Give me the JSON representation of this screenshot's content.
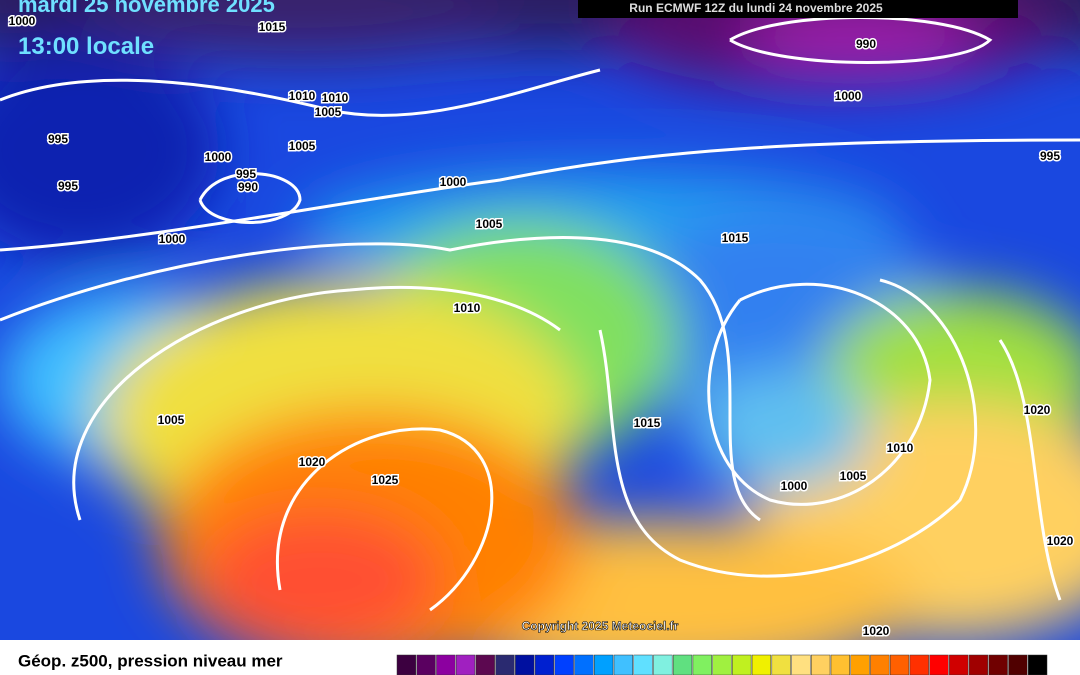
{
  "header": {
    "date": "mardi 25 novembre 2025",
    "time": "13:00 locale",
    "run": "Run ECMWF 12Z du lundi 24 novembre 2025"
  },
  "isobar_labels": [
    1015,
    1000,
    1010,
    1010,
    1005,
    1005,
    995,
    995,
    1000,
    995,
    990,
    1000,
    1000,
    1005,
    990,
    1000,
    995,
    1015,
    1010,
    1005,
    1020,
    1025,
    1015,
    1020,
    1010,
    1005,
    1000,
    1020,
    1020
  ],
  "copyright": "Copyright 2025 Meteociel.fr",
  "legend": {
    "caption": "Géop. z500, pression niveau mer",
    "colors": [
      "#3c0040",
      "#5a0060",
      "#8c00a0",
      "#a020c0",
      "#5c0850",
      "#2a2a70",
      "#0010a0",
      "#0020d0",
      "#0040ff",
      "#0070ff",
      "#00a0ff",
      "#40c0ff",
      "#60e0ff",
      "#80f0e0",
      "#60e080",
      "#80f060",
      "#a0f040",
      "#c0f020",
      "#f0f000",
      "#f0e040",
      "#ffe080",
      "#ffd060",
      "#ffc030",
      "#ffa000",
      "#ff8000",
      "#ff6000",
      "#ff3000",
      "#ff0000",
      "#d00000",
      "#a00000",
      "#700000",
      "#500000",
      "#000000"
    ]
  }
}
